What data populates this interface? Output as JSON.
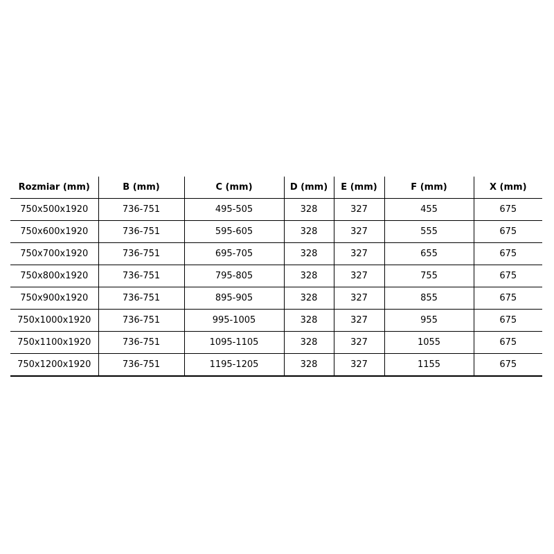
{
  "table": {
    "headers": [
      "Rozmiar (mm)",
      "B (mm)",
      "C (mm)",
      "D (mm)",
      "E (mm)",
      "F (mm)",
      "X (mm)"
    ],
    "rows": [
      [
        "750x500x1920",
        "736-751",
        "495-505",
        "328",
        "327",
        "455",
        "675"
      ],
      [
        "750x600x1920",
        "736-751",
        "595-605",
        "328",
        "327",
        "555",
        "675"
      ],
      [
        "750x700x1920",
        "736-751",
        "695-705",
        "328",
        "327",
        "655",
        "675"
      ],
      [
        "750x800x1920",
        "736-751",
        "795-805",
        "328",
        "327",
        "755",
        "675"
      ],
      [
        "750x900x1920",
        "736-751",
        "895-905",
        "328",
        "327",
        "855",
        "675"
      ],
      [
        "750x1000x1920",
        "736-751",
        "995-1005",
        "328",
        "327",
        "955",
        "675"
      ],
      [
        "750x1100x1920",
        "736-751",
        "1095-1105",
        "328",
        "327",
        "1055",
        "675"
      ],
      [
        "750x1200x1920",
        "736-751",
        "1195-1205",
        "328",
        "327",
        "1155",
        "675"
      ]
    ]
  }
}
